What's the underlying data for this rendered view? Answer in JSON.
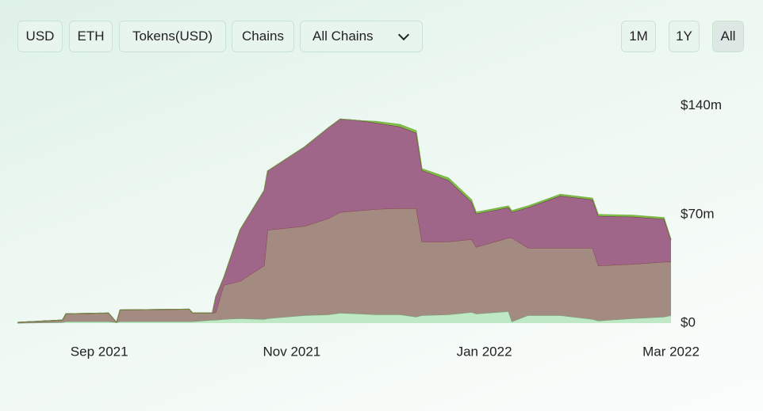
{
  "controls": {
    "left": [
      "USD",
      "ETH",
      "Tokens(USD)",
      "Chains"
    ],
    "dropdown": "All Chains",
    "right": [
      "1M",
      "1Y",
      "All"
    ]
  },
  "chart_data": {
    "type": "stacked-area",
    "x": [
      2021.595,
      2021.634,
      2021.637,
      2021.674,
      2021.681,
      2021.684,
      2021.744,
      2021.747,
      2021.764,
      2021.767,
      2021.774,
      2021.788,
      2021.809,
      2021.812,
      2021.844,
      2021.865,
      2021.875,
      2021.892,
      2021.906,
      2021.927,
      2021.941,
      2021.946,
      2021.969,
      2021.989,
      2021.993,
      2022.021,
      2022.024,
      2022.038,
      2022.066,
      2022.094,
      2022.099,
      2022.129,
      2022.156,
      2022.162
    ],
    "series": [
      {
        "color": "#bfe8c4",
        "values": [
          0,
          0.5,
          1,
          1,
          0.5,
          1,
          1,
          1,
          2,
          2,
          2.5,
          3,
          2.5,
          3,
          5,
          5.5,
          6.5,
          6,
          5.5,
          5.5,
          4,
          5,
          5.5,
          7,
          6,
          7.5,
          1,
          5,
          5,
          2.5,
          1.5,
          3,
          4,
          5
        ]
      },
      {
        "color": "#a38b82",
        "values": [
          0.5,
          1.5,
          5,
          5.5,
          0,
          7.5,
          8,
          5.5,
          4.5,
          5,
          22,
          24,
          34.5,
          57,
          57.5,
          62,
          65,
          66.5,
          68,
          68.5,
          70,
          47.5,
          47,
          47,
          43,
          47.5,
          54,
          43.5,
          43.5,
          46,
          35.5,
          35,
          35.5,
          34.5
        ]
      },
      {
        "color": "#a0668a",
        "values": [
          0,
          0,
          0,
          0,
          0,
          0,
          0,
          0,
          0,
          10,
          5,
          33,
          48.5,
          38,
          51,
          58.5,
          60,
          58,
          55.5,
          52.5,
          48.5,
          46,
          39.5,
          24,
          21.5,
          19.5,
          16.5,
          26,
          33.5,
          31,
          32,
          30.5,
          27.5,
          14
        ]
      },
      {
        "color": "#7dc243",
        "values": [
          0,
          0,
          0,
          0,
          0,
          0,
          0,
          0,
          0,
          0,
          0,
          0,
          0,
          0,
          0,
          0,
          0,
          0,
          1,
          1.5,
          1.5,
          1,
          1.5,
          1.5,
          1,
          1,
          1,
          1,
          1,
          1,
          1,
          1,
          1,
          0.5
        ]
      }
    ],
    "xlim": [
      2021.595,
      2022.162
    ],
    "xticks": [
      {
        "value": 2021.666,
        "label": "Sep 2021"
      },
      {
        "value": 2021.833,
        "label": "Nov 2021"
      },
      {
        "value": 2022.0,
        "label": "Jan 2022"
      },
      {
        "value": 2022.162,
        "label": "Mar 2022"
      }
    ],
    "ylim": [
      0,
      150
    ],
    "yticks": [
      {
        "value": 0,
        "label": "$0"
      },
      {
        "value": 70,
        "label": "$70m"
      },
      {
        "value": 140,
        "label": "$140m"
      }
    ]
  }
}
